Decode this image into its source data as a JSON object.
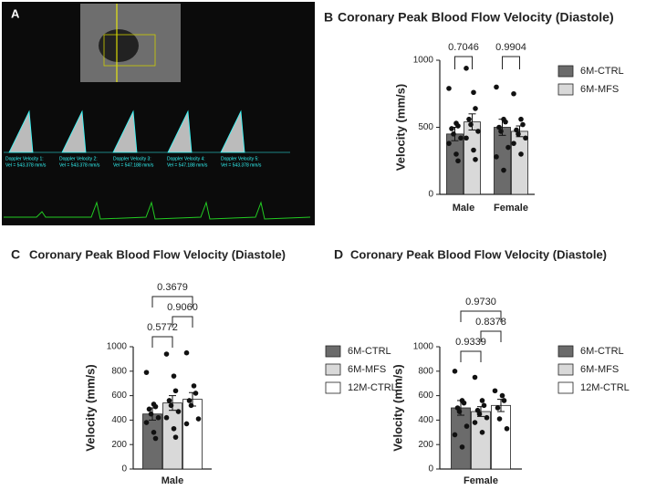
{
  "image_panel": {
    "label": "A",
    "doppler_labels": [
      "Doppler Velocity 1:",
      "Doppler Velocity 2:",
      "Doppler Velocity 3:",
      "Doppler Velocity 4:",
      "Doppler Velocity 5:"
    ],
    "doppler_values": [
      "Vel = 543.378 mm/s",
      "Vel = 543.378 mm/s",
      "Vel = 547.188 mm/s",
      "Vel = 547.188 mm/s",
      "Vel = 543.378 mm/s"
    ]
  },
  "chart_data": [
    {
      "type": "bar",
      "label": "B",
      "title": "Coronary Peak Blood Flow Velocity (Diastole)",
      "ylabel": "Velocity (mm/s)",
      "categories": [
        "Male",
        "Female"
      ],
      "ylim": [
        0,
        1000
      ],
      "yticks": [
        0,
        500,
        1000
      ],
      "series": [
        {
          "name": "6M-CTRL",
          "color": "#6b6b6b",
          "values": [
            450,
            500
          ],
          "errors": [
            50,
            60
          ],
          "points": [
            [
              790,
              530,
              510,
              490,
              450,
              420,
              380,
              300,
              250
            ],
            [
              800,
              560,
              540,
              500,
              470,
              350,
              280,
              180
            ]
          ]
        },
        {
          "name": "6M-MFS",
          "color": "#d9d9d9",
          "values": [
            540,
            470
          ],
          "errors": [
            60,
            40
          ],
          "points": [
            [
              940,
              760,
              640,
              560,
              520,
              470,
              420,
              330,
              260
            ],
            [
              750,
              560,
              520,
              480,
              450,
              420,
              380,
              300
            ]
          ]
        }
      ],
      "annotations": [
        "0.7046",
        "0.9904"
      ]
    },
    {
      "type": "bar",
      "label": "C",
      "title": "Coronary Peak Blood Flow Velocity (Diastole)",
      "ylabel": "Velocity (mm/s)",
      "categories": [
        "Male"
      ],
      "ylim": [
        0,
        1000
      ],
      "yticks": [
        0,
        200,
        400,
        600,
        800,
        1000
      ],
      "series": [
        {
          "name": "6M-CTRL",
          "color": "#6b6b6b",
          "values": [
            450
          ],
          "errors": [
            50
          ],
          "points": [
            [
              790,
              530,
              510,
              490,
              450,
              420,
              380,
              300,
              250
            ]
          ]
        },
        {
          "name": "6M-MFS",
          "color": "#d9d9d9",
          "values": [
            540
          ],
          "errors": [
            60
          ],
          "points": [
            [
              940,
              760,
              640,
              560,
              520,
              470,
              420,
              330,
              260
            ]
          ]
        },
        {
          "name": "12M-CTRL",
          "color": "#ffffff",
          "values": [
            570
          ],
          "errors": [
            55
          ],
          "points": [
            [
              950,
              680,
              620,
              560,
              520,
              410,
              370
            ]
          ]
        }
      ],
      "annotations": [
        "0.3679",
        "0.9060",
        "0.5772"
      ]
    },
    {
      "type": "bar",
      "label": "D",
      "title": "Coronary Peak Blood Flow Velocity (Diastole)",
      "ylabel": "Velocity (mm/s)",
      "categories": [
        "Female"
      ],
      "ylim": [
        0,
        1000
      ],
      "yticks": [
        0,
        200,
        400,
        600,
        800,
        1000
      ],
      "series": [
        {
          "name": "6M-CTRL",
          "color": "#6b6b6b",
          "values": [
            500
          ],
          "errors": [
            60
          ],
          "points": [
            [
              800,
              560,
              540,
              500,
              470,
              350,
              280,
              180
            ]
          ]
        },
        {
          "name": "6M-MFS",
          "color": "#d9d9d9",
          "values": [
            470
          ],
          "errors": [
            40
          ],
          "points": [
            [
              750,
              560,
              520,
              480,
              450,
              420,
              380,
              300
            ]
          ]
        },
        {
          "name": "12M-CTRL",
          "color": "#ffffff",
          "values": [
            520
          ],
          "errors": [
            50
          ],
          "points": [
            [
              640,
              600,
              560,
              500,
              410,
              330
            ]
          ]
        }
      ],
      "annotations": [
        "0.9730",
        "0.8378",
        "0.9339"
      ]
    }
  ]
}
